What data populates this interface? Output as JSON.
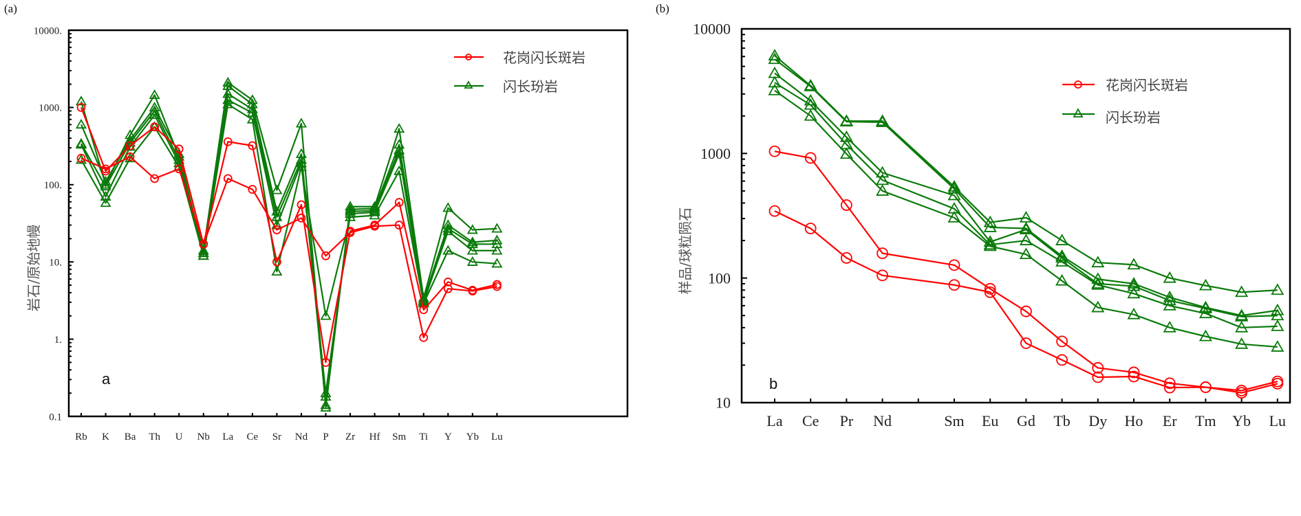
{
  "colors": {
    "granodiorite_porphyry": "#ff0000",
    "diorite_porphyrite": "#0a7a0a"
  },
  "chart_data": [
    {
      "id": "a",
      "type": "line",
      "panel_label": "(a)",
      "inner_label": "a",
      "title": "",
      "xlabel": "",
      "ylabel": "岩石/原始地幔",
      "yscale": "log",
      "ylim": [
        0.1,
        10000
      ],
      "ytick_labels": [
        "0.1",
        "1.",
        "10.",
        "100.",
        "1000.",
        "10000."
      ],
      "ytick_values": [
        0.1,
        1,
        10,
        100,
        1000,
        10000
      ],
      "categories": [
        "Rb",
        "K",
        "Ba",
        "Th",
        "U",
        "Nb",
        "La",
        "Ce",
        "Sr",
        "Nd",
        "P",
        "Zr",
        "Hf",
        "Sm",
        "Ti",
        "Y",
        "Yb",
        "Lu"
      ],
      "legend": {
        "placement": "top-right",
        "entries": [
          {
            "label": "花岗闪长斑岩",
            "marker": "circle",
            "group": "granodiorite_porphyry"
          },
          {
            "label": "闪长玢岩",
            "marker": "triangle",
            "group": "diorite_porphyrite"
          }
        ]
      },
      "series": [
        {
          "name": "花岗闪长斑岩 1",
          "group": "granodiorite_porphyry",
          "marker": "circle",
          "values": [
            1000,
            150,
            320,
            560,
            290,
            17,
            360,
            320,
            10,
            55,
            0.5,
            25,
            30,
            59,
            2.4,
            5.5,
            4.3,
            5.1
          ]
        },
        {
          "name": "花岗闪长斑岩 2",
          "group": "granodiorite_porphyry",
          "marker": "circle",
          "values": [
            220,
            160,
            230,
            120,
            160,
            17,
            120,
            87,
            26,
            37,
            12,
            24,
            29,
            30,
            1.05,
            4.5,
            4.2,
            4.8
          ]
        },
        {
          "name": "闪长玢岩 1",
          "group": "diorite_porphyrite",
          "marker": "triangle",
          "values": [
            1200,
            100,
            440,
            1450,
            230,
            14,
            2100,
            1250,
            85,
            620,
            0.13,
            52,
            52,
            530,
            3.4,
            50,
            26,
            27
          ]
        },
        {
          "name": "闪长玢岩 2",
          "group": "diorite_porphyrite",
          "marker": "triangle",
          "values": [
            600,
            110,
            380,
            1000,
            250,
            13,
            1900,
            1100,
            45,
            250,
            0.14,
            48,
            49,
            330,
            3.2,
            30,
            18,
            19
          ]
        },
        {
          "name": "闪长玢岩 3",
          "group": "diorite_porphyrite",
          "marker": "triangle",
          "values": [
            340,
            95,
            350,
            900,
            210,
            13,
            1500,
            950,
            38,
            210,
            0.18,
            45,
            46,
            280,
            3.1,
            27,
            17,
            17
          ]
        },
        {
          "name": "闪长玢岩 4",
          "group": "diorite_porphyrite",
          "marker": "triangle",
          "values": [
            330,
            70,
            310,
            800,
            190,
            12,
            1250,
            850,
            30,
            190,
            0.2,
            42,
            44,
            250,
            3.0,
            25,
            14,
            14
          ]
        },
        {
          "name": "闪长玢岩 5",
          "group": "diorite_porphyrite",
          "marker": "triangle",
          "values": [
            210,
            58,
            220,
            560,
            170,
            12,
            1100,
            700,
            7.5,
            170,
            2.0,
            38,
            40,
            150,
            2.9,
            14,
            10,
            9.5
          ]
        }
      ]
    },
    {
      "id": "b",
      "type": "line",
      "panel_label": "(b)",
      "inner_label": "b",
      "title": "",
      "xlabel": "",
      "ylabel": "样品/球粒陨石",
      "yscale": "log",
      "ylim": [
        10,
        10000
      ],
      "ytick_labels": [
        "10",
        "100",
        "1000",
        "10000"
      ],
      "ytick_values": [
        10,
        100,
        1000,
        10000
      ],
      "categories": [
        "La",
        "Ce",
        "Pr",
        "Nd",
        "",
        "Sm",
        "Eu",
        "Gd",
        "Tb",
        "Dy",
        "Ho",
        "Er",
        "Tm",
        "Yb",
        "Lu"
      ],
      "legend": {
        "placement": "top-right",
        "entries": [
          {
            "label": "花岗闪长斑岩",
            "marker": "circle",
            "group": "granodiorite_porphyry"
          },
          {
            "label": "闪长玢岩",
            "marker": "triangle",
            "group": "diorite_porphyrite"
          }
        ]
      },
      "series": [
        {
          "name": "花岗闪长斑岩 1",
          "group": "granodiorite_porphyry",
          "marker": "circle",
          "values": [
            1040,
            920,
            385,
            158,
            null,
            127,
            82,
            54,
            31,
            19,
            17.5,
            14.3,
            13.3,
            12.5,
            14.8
          ]
        },
        {
          "name": "花岗闪长斑岩 2",
          "group": "granodiorite_porphyry",
          "marker": "circle",
          "values": [
            345,
            250,
            145,
            105,
            null,
            88,
            77,
            30,
            22,
            16,
            16.2,
            13.2,
            13.3,
            12,
            14.2
          ]
        },
        {
          "name": "闪长玢岩 1",
          "group": "diorite_porphyrite",
          "marker": "triangle",
          "values": [
            6100,
            3500,
            1820,
            1820,
            null,
            540,
            280,
            305,
            200,
            133,
            128,
            100,
            87,
            77,
            80
          ]
        },
        {
          "name": "闪长玢岩 2",
          "group": "diorite_porphyrite",
          "marker": "triangle",
          "values": [
            5700,
            3450,
            1800,
            1780,
            null,
            520,
            255,
            250,
            150,
            98,
            90,
            70,
            58,
            50,
            55
          ]
        },
        {
          "name": "闪长玢岩 3",
          "group": "diorite_porphyrite",
          "marker": "triangle",
          "values": [
            4400,
            2650,
            1350,
            700,
            null,
            460,
            195,
            245,
            145,
            90,
            86,
            66,
            57,
            49,
            50
          ]
        },
        {
          "name": "闪长玢岩 4",
          "group": "diorite_porphyrite",
          "marker": "triangle",
          "values": [
            3700,
            2450,
            1180,
            610,
            null,
            360,
            185,
            200,
            135,
            88,
            75,
            60,
            52,
            40,
            41
          ]
        },
        {
          "name": "闪长玢岩 5",
          "group": "diorite_porphyrite",
          "marker": "triangle",
          "values": [
            3200,
            2000,
            990,
            500,
            null,
            305,
            180,
            155,
            95,
            58,
            51,
            40,
            34,
            29.5,
            28
          ]
        }
      ]
    }
  ]
}
